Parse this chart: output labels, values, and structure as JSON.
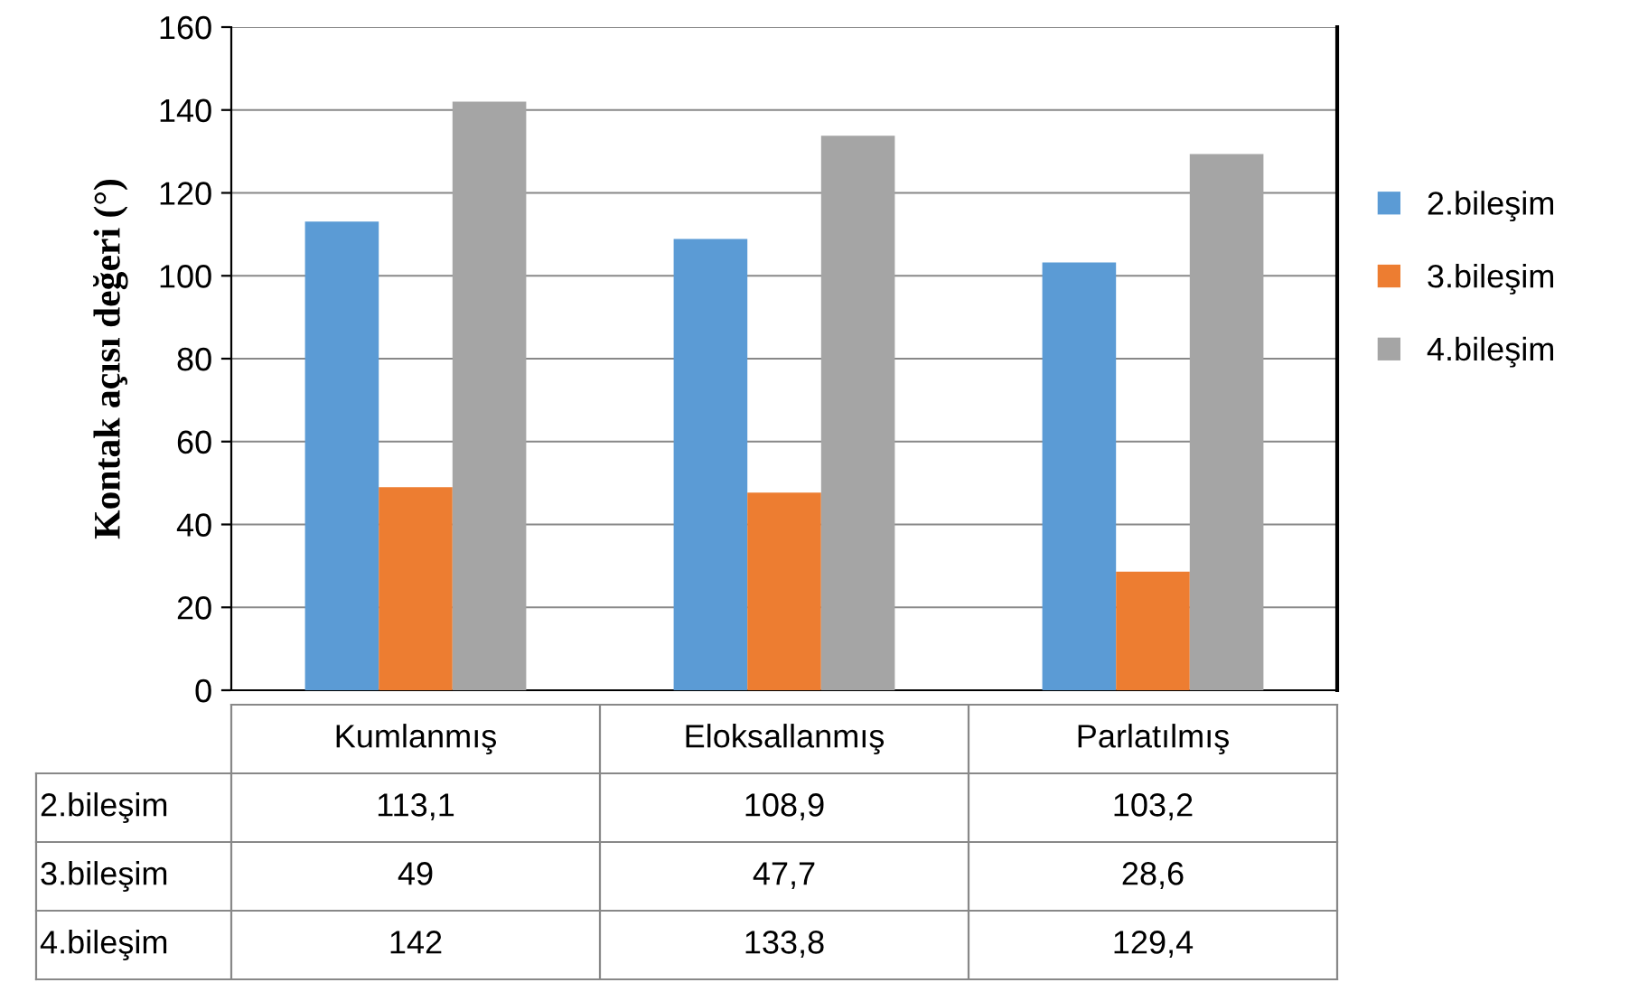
{
  "chart_data": {
    "type": "bar",
    "ylabel": "Kontak açısı değeri (°)",
    "categories": [
      "Kumlanmış",
      "Eloksallanmış",
      "Parlatılmış"
    ],
    "series": [
      {
        "name": "2.bileşim",
        "color": "#5b9bd5",
        "values": [
          113.1,
          108.9,
          103.2
        ],
        "value_labels": [
          "113,1",
          "108,9",
          "103,2"
        ]
      },
      {
        "name": "3.bileşim",
        "color": "#ed7d31",
        "values": [
          49,
          47.7,
          28.6
        ],
        "value_labels": [
          "49",
          "47,7",
          "28,6"
        ]
      },
      {
        "name": "4.bileşim",
        "color": "#a5a5a5",
        "values": [
          142,
          133.8,
          129.4
        ],
        "value_labels": [
          "142",
          "133,8",
          "129,4"
        ]
      }
    ],
    "ylim": [
      0,
      160
    ],
    "yticks": [
      0,
      20,
      40,
      60,
      80,
      100,
      120,
      140,
      160
    ],
    "grid": "y",
    "legend": "right"
  }
}
